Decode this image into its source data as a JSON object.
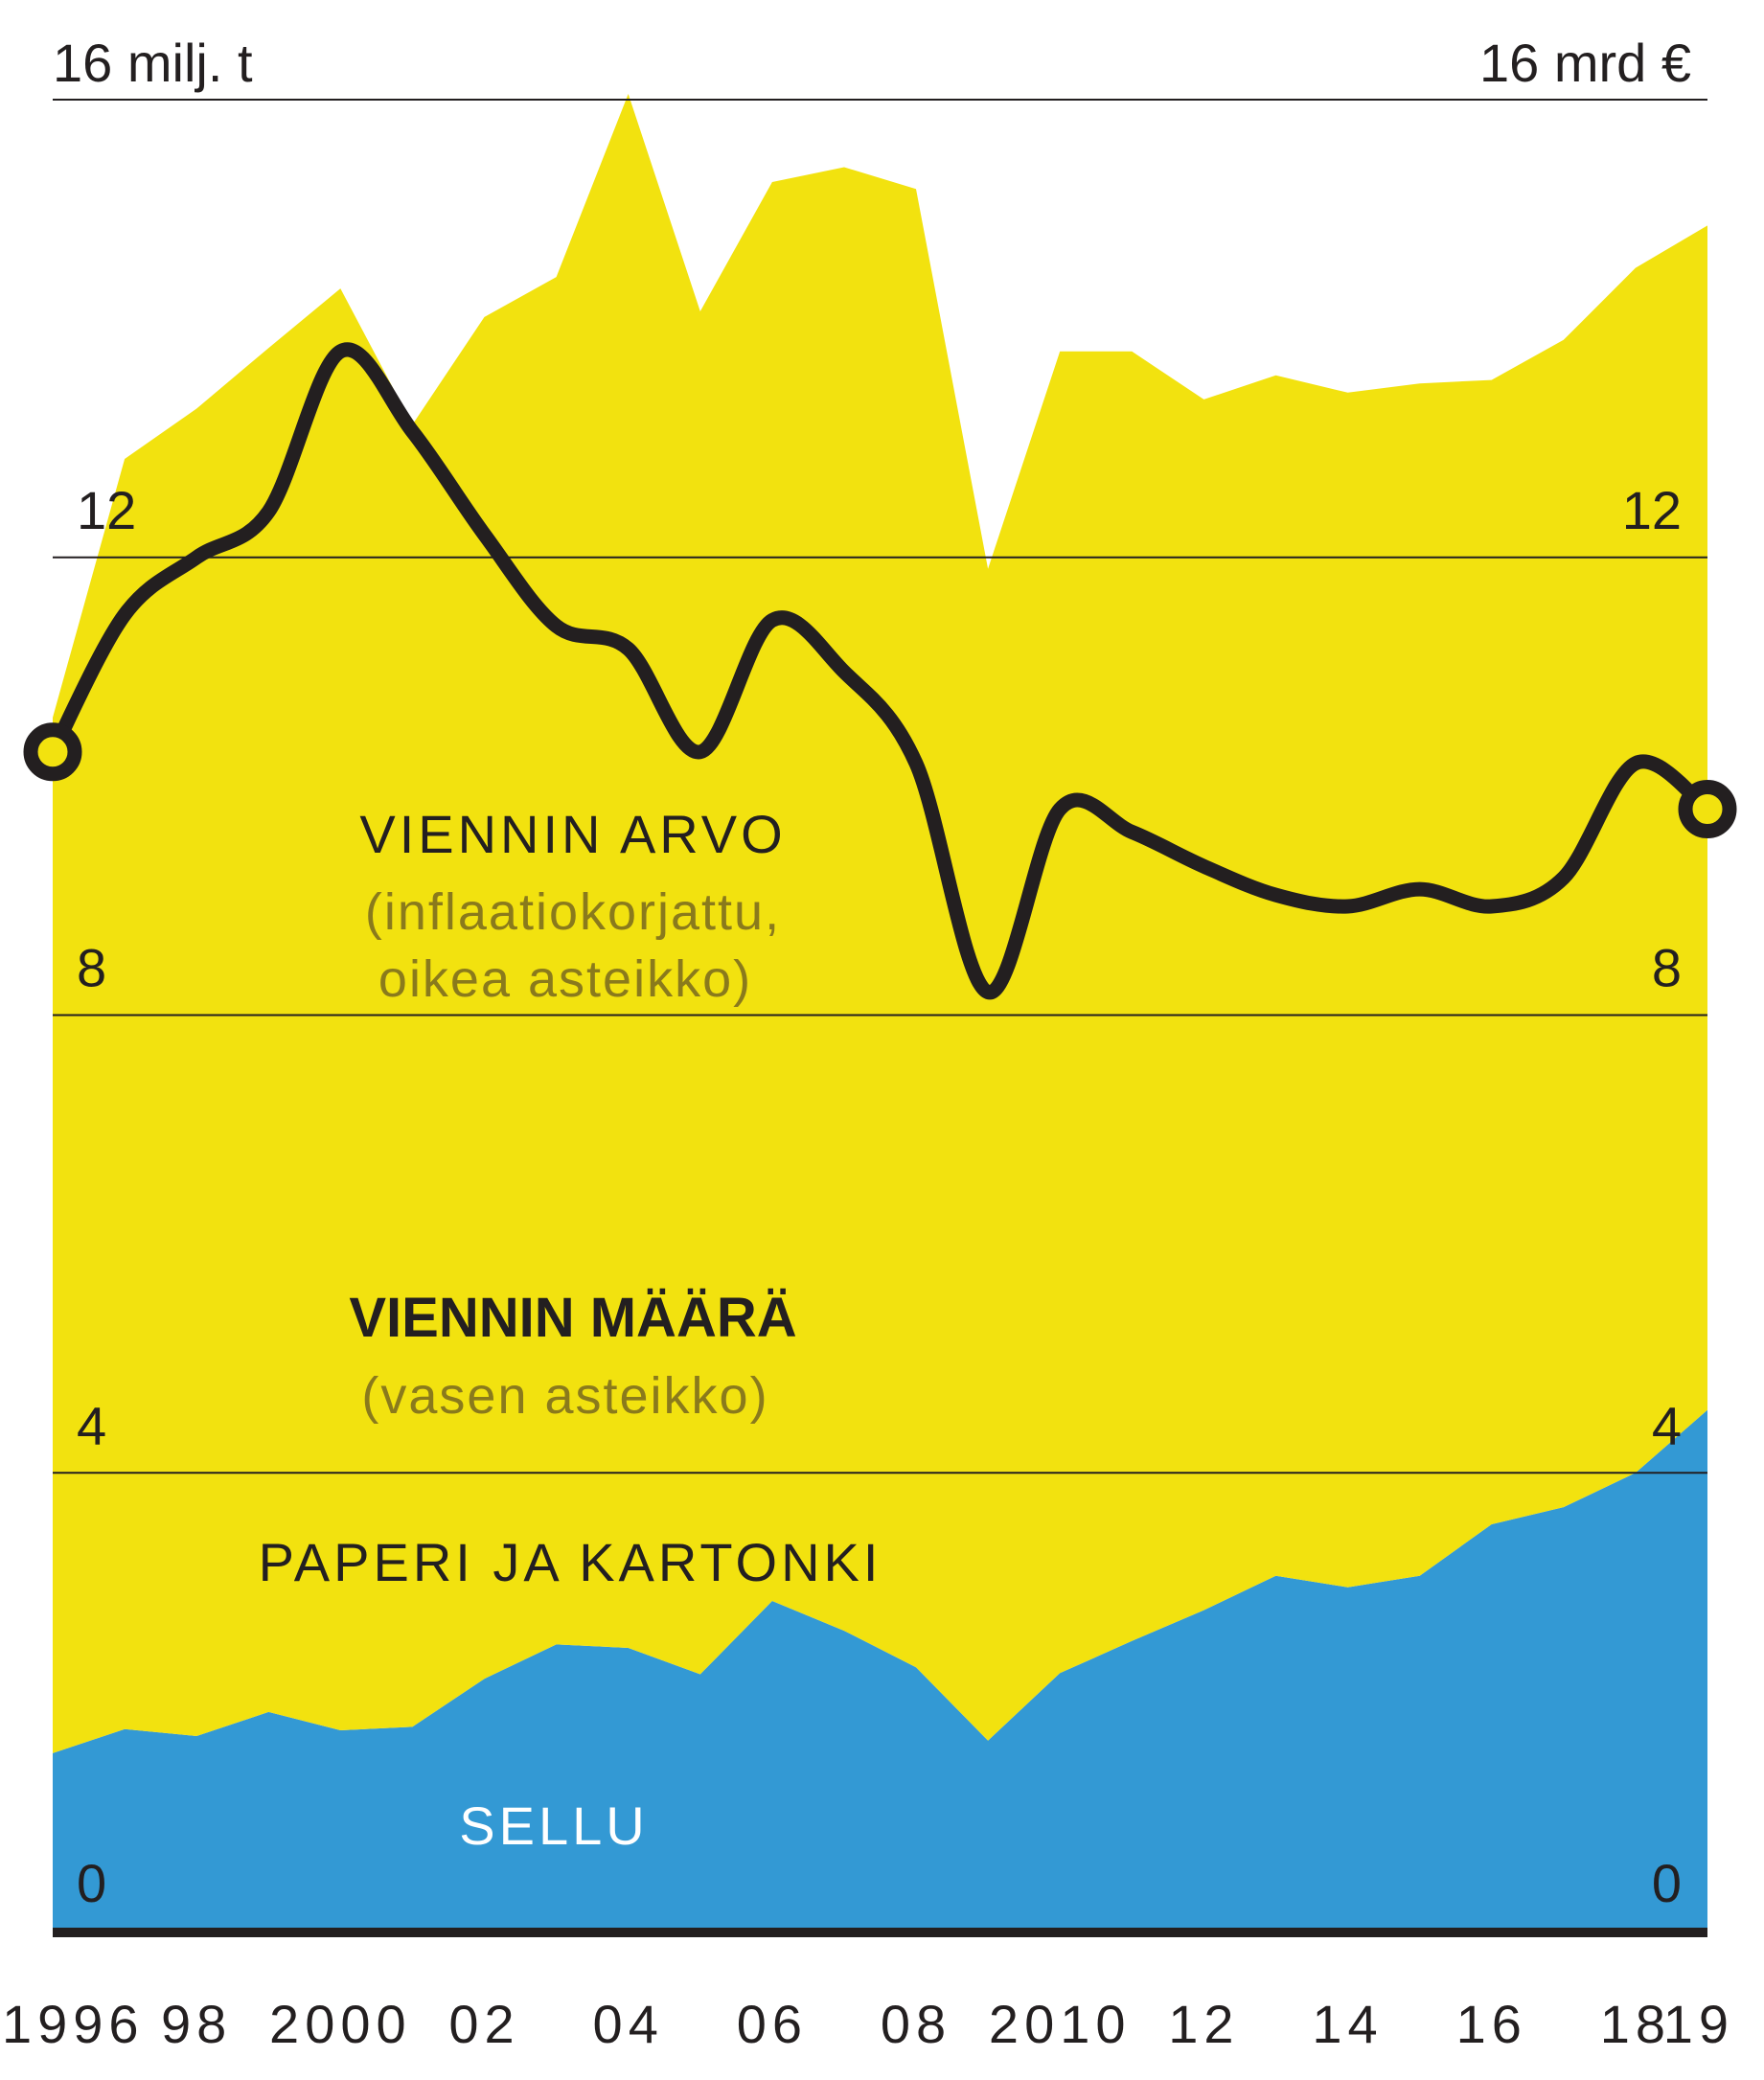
{
  "chart_data": {
    "type": "area",
    "x": [
      1996,
      1997,
      1998,
      1999,
      2000,
      2001,
      2002,
      2003,
      2004,
      2005,
      2006,
      2007,
      2008,
      2009,
      2010,
      2011,
      2012,
      2013,
      2014,
      2015,
      2016,
      2017,
      2018,
      2019
    ],
    "xticks": [
      {
        "x": 1996,
        "label": "1996"
      },
      {
        "x": 1998,
        "label": "98"
      },
      {
        "x": 2000,
        "label": "2000"
      },
      {
        "x": 2002,
        "label": "02"
      },
      {
        "x": 2004,
        "label": "04"
      },
      {
        "x": 2006,
        "label": "06"
      },
      {
        "x": 2008,
        "label": "08"
      },
      {
        "x": 2010,
        "label": "2010"
      },
      {
        "x": 2012,
        "label": "12"
      },
      {
        "x": 2014,
        "label": "14"
      },
      {
        "x": 2016,
        "label": "16"
      },
      {
        "x": 2018,
        "label": "18"
      },
      {
        "x": 2019,
        "label": "19"
      }
    ],
    "left_axis": {
      "unit_label": "16 milj. t",
      "ticks": [
        "0",
        "4",
        "8",
        "12"
      ],
      "range": [
        0,
        16
      ]
    },
    "right_axis": {
      "unit_label": "16 mrd €",
      "ticks": [
        "0",
        "4",
        "8",
        "12"
      ],
      "range": [
        0,
        16
      ]
    },
    "grid": true,
    "series": [
      {
        "name": "SELLU",
        "axis": "left",
        "kind": "stacked-area",
        "color": "#3399d4",
        "values": [
          1.55,
          1.76,
          1.7,
          1.91,
          1.75,
          1.78,
          2.2,
          2.5,
          2.47,
          2.24,
          2.88,
          2.62,
          2.3,
          1.66,
          2.25,
          2.53,
          2.8,
          3.1,
          3.0,
          3.1,
          3.55,
          3.7,
          4.0,
          4.55
        ]
      },
      {
        "name": "PAPERI JA KARTONKI",
        "axis": "left",
        "kind": "stacked-area",
        "color": "#f2e20f",
        "values": [
          9.05,
          11.1,
          11.6,
          11.92,
          12.6,
          11.38,
          11.9,
          11.95,
          13.58,
          11.91,
          12.4,
          12.79,
          12.92,
          10.24,
          11.55,
          11.27,
          10.58,
          10.49,
          10.44,
          10.42,
          10.0,
          10.2,
          10.53,
          10.35
        ]
      },
      {
        "name": "VIENNIN ARVO",
        "axis": "right",
        "kind": "line",
        "color": "#231f20",
        "values": [
          10.3,
          11.5,
          12.0,
          12.4,
          13.8,
          13.1,
          12.2,
          11.4,
          11.2,
          10.3,
          11.45,
          11.0,
          10.2,
          8.2,
          9.8,
          9.6,
          9.3,
          9.05,
          8.95,
          9.1,
          8.95,
          9.2,
          10.2,
          9.8
        ]
      }
    ],
    "annotations": {
      "value_title": "VIENNIN ARVO",
      "value_sub1": "(inflaatiokorjattu,",
      "value_sub2": "oikea asteikko)",
      "volume_title": "VIENNIN MÄÄRÄ",
      "volume_sub": "(vasen asteikko)",
      "paper_label": "PAPERI JA KARTONKI",
      "pulp_label": "SELLU"
    }
  }
}
